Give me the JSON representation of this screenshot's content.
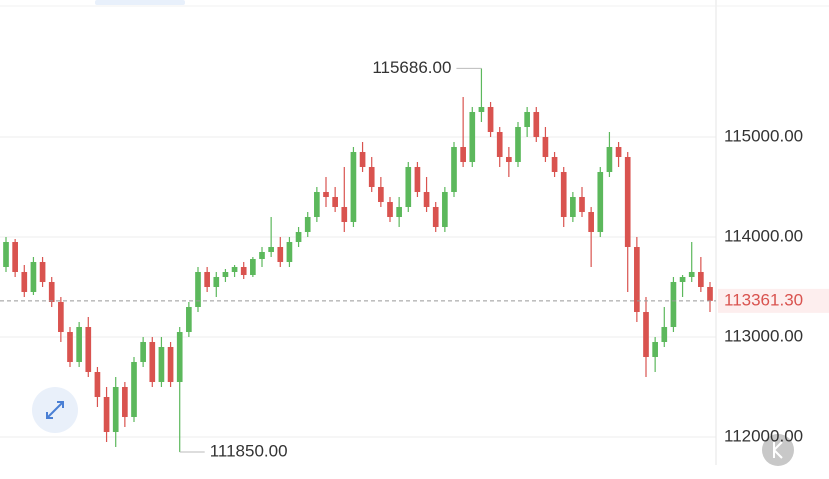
{
  "chart_data": {
    "type": "candlestick",
    "up_color": "#5cb85c",
    "down_color": "#d9534f",
    "ylim": [
      111580,
      116370
    ],
    "yticks": [
      {
        "value": 112000,
        "label": "112000.00"
      },
      {
        "value": 113000,
        "label": "113000.00"
      },
      {
        "value": 114000,
        "label": "114000.00"
      },
      {
        "value": 115000,
        "label": "115000.00"
      }
    ],
    "grid": true,
    "ohlc": [
      [
        113700,
        114000,
        113650,
        113950
      ],
      [
        113950,
        113980,
        113600,
        113650
      ],
      [
        113650,
        113720,
        113400,
        113450
      ],
      [
        113450,
        113800,
        113420,
        113750
      ],
      [
        113750,
        113800,
        113500,
        113550
      ],
      [
        113550,
        113600,
        113300,
        113350
      ],
      [
        113350,
        113400,
        112950,
        113050
      ],
      [
        113050,
        113100,
        112700,
        112750
      ],
      [
        112750,
        113150,
        112700,
        113100
      ],
      [
        113100,
        113200,
        112600,
        112650
      ],
      [
        112650,
        112700,
        112300,
        112400
      ],
      [
        112400,
        112500,
        111950,
        112050
      ],
      [
        112050,
        112600,
        111900,
        112500
      ],
      [
        112500,
        112550,
        112100,
        112200
      ],
      [
        112200,
        112800,
        112150,
        112750
      ],
      [
        112750,
        113000,
        112700,
        112950
      ],
      [
        112950,
        113000,
        112500,
        112550
      ],
      [
        112550,
        113000,
        112500,
        112900
      ],
      [
        112900,
        112950,
        112500,
        112550
      ],
      [
        112550,
        113100,
        111850,
        113050
      ],
      [
        113050,
        113350,
        113000,
        113300
      ],
      [
        113300,
        113700,
        113250,
        113650
      ],
      [
        113650,
        113700,
        113450,
        113500
      ],
      [
        113500,
        113650,
        113400,
        113600
      ],
      [
        113600,
        113680,
        113550,
        113650
      ],
      [
        113650,
        113720,
        113600,
        113700
      ],
      [
        113700,
        113750,
        113580,
        113620
      ],
      [
        113620,
        113800,
        113600,
        113780
      ],
      [
        113780,
        113900,
        113700,
        113850
      ],
      [
        113850,
        114200,
        113800,
        113900
      ],
      [
        113900,
        114000,
        113700,
        113750
      ],
      [
        113750,
        114000,
        113700,
        113950
      ],
      [
        113950,
        114100,
        113900,
        114050
      ],
      [
        114050,
        114250,
        114000,
        114200
      ],
      [
        114200,
        114500,
        114150,
        114450
      ],
      [
        114450,
        114600,
        114300,
        114400
      ],
      [
        114400,
        114500,
        114250,
        114300
      ],
      [
        114300,
        114700,
        114050,
        114150
      ],
      [
        114150,
        114900,
        114100,
        114850
      ],
      [
        114850,
        114950,
        114650,
        114700
      ],
      [
        114700,
        114800,
        114450,
        114500
      ],
      [
        114500,
        114600,
        114300,
        114350
      ],
      [
        114350,
        114400,
        114150,
        114200
      ],
      [
        114200,
        114400,
        114100,
        114300
      ],
      [
        114300,
        114750,
        114250,
        114700
      ],
      [
        114700,
        114750,
        114400,
        114450
      ],
      [
        114450,
        114600,
        114250,
        114300
      ],
      [
        114300,
        114350,
        114050,
        114100
      ],
      [
        114100,
        114500,
        114050,
        114450
      ],
      [
        114450,
        114950,
        114400,
        114900
      ],
      [
        114900,
        115400,
        114700,
        114750
      ],
      [
        114750,
        115300,
        114700,
        115250
      ],
      [
        115250,
        115686,
        115150,
        115300
      ],
      [
        115300,
        115350,
        115000,
        115050
      ],
      [
        115050,
        115100,
        114700,
        114800
      ],
      [
        114800,
        114900,
        114600,
        114750
      ],
      [
        114750,
        115150,
        114700,
        115100
      ],
      [
        115100,
        115300,
        115000,
        115250
      ],
      [
        115250,
        115300,
        114950,
        115000
      ],
      [
        115000,
        115100,
        114750,
        114800
      ],
      [
        114800,
        114850,
        114600,
        114650
      ],
      [
        114650,
        114700,
        114100,
        114200
      ],
      [
        114200,
        114450,
        114150,
        114400
      ],
      [
        114400,
        114500,
        114200,
        114250
      ],
      [
        114250,
        114300,
        113700,
        114050
      ],
      [
        114050,
        114700,
        114000,
        114650
      ],
      [
        114650,
        115050,
        114600,
        114900
      ],
      [
        114900,
        114950,
        114700,
        114800
      ],
      [
        114800,
        114850,
        113450,
        113900
      ],
      [
        113900,
        114000,
        113150,
        113250
      ],
      [
        113250,
        113400,
        112600,
        112800
      ],
      [
        112800,
        113000,
        112650,
        112950
      ],
      [
        112950,
        113300,
        112900,
        113100
      ],
      [
        113100,
        113600,
        113050,
        113550
      ],
      [
        113550,
        113620,
        113400,
        113600
      ],
      [
        113600,
        113950,
        113550,
        113650
      ],
      [
        113650,
        113800,
        113450,
        113500
      ],
      [
        113500,
        113550,
        113250,
        113361.3
      ]
    ],
    "max_label": {
      "value": 115686,
      "label": "115686.00"
    },
    "min_label": {
      "value": 111850,
      "label": "111850.00"
    },
    "last_price": {
      "value": 113361.3,
      "label": "113361.30"
    }
  }
}
